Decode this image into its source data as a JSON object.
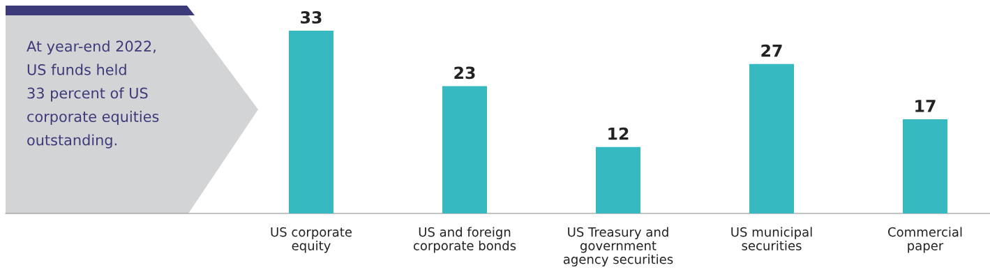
{
  "chart_data": {
    "type": "bar",
    "categories": [
      "US corporate\nequity",
      "US and foreign\ncorporate bonds",
      "US Treasury and\ngovernment\nagency securities",
      "US municipal\nsecurities",
      "Commercial\npaper"
    ],
    "values": [
      33,
      23,
      12,
      27,
      17
    ],
    "color": "#36b9c0",
    "data_labels": true,
    "grid": false,
    "legend": false,
    "annotations": [
      "At year-end 2022,\nUS funds held\n33 percent of US\ncorporate equities\noutstanding."
    ]
  }
}
